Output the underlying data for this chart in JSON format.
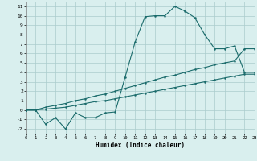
{
  "xlabel": "Humidex (Indice chaleur)",
  "x_values": [
    0,
    1,
    2,
    3,
    4,
    5,
    6,
    7,
    8,
    9,
    10,
    11,
    12,
    13,
    14,
    15,
    16,
    17,
    18,
    19,
    20,
    21,
    22,
    23
  ],
  "line_main": [
    0,
    0,
    -1.5,
    -0.8,
    -2.0,
    -0.3,
    -0.8,
    -0.8,
    -0.3,
    -0.2,
    3.5,
    7.2,
    9.9,
    10.0,
    10.0,
    11.0,
    10.5,
    9.8,
    8.0,
    6.5,
    6.5,
    6.8,
    4.0,
    4.0
  ],
  "line_upper": [
    0,
    0,
    0.3,
    0.5,
    0.7,
    1.0,
    1.2,
    1.5,
    1.7,
    2.0,
    2.3,
    2.6,
    2.9,
    3.2,
    3.5,
    3.7,
    4.0,
    4.3,
    4.5,
    4.8,
    5.0,
    5.2,
    6.5,
    6.5
  ],
  "line_lower": [
    0,
    0,
    0.1,
    0.2,
    0.3,
    0.5,
    0.7,
    0.9,
    1.0,
    1.2,
    1.4,
    1.6,
    1.8,
    2.0,
    2.2,
    2.4,
    2.6,
    2.8,
    3.0,
    3.2,
    3.4,
    3.6,
    3.8,
    3.8
  ],
  "ylim": [
    -2.5,
    11.5
  ],
  "xlim": [
    0,
    23
  ],
  "yticks": [
    -2,
    -1,
    0,
    1,
    2,
    3,
    4,
    5,
    6,
    7,
    8,
    9,
    10,
    11
  ],
  "xticks": [
    0,
    1,
    2,
    3,
    4,
    5,
    6,
    7,
    8,
    9,
    10,
    11,
    12,
    13,
    14,
    15,
    16,
    17,
    18,
    19,
    20,
    21,
    22,
    23
  ],
  "line_color": "#1a6b6b",
  "bg_color": "#d9efee",
  "grid_color": "#aacccc"
}
